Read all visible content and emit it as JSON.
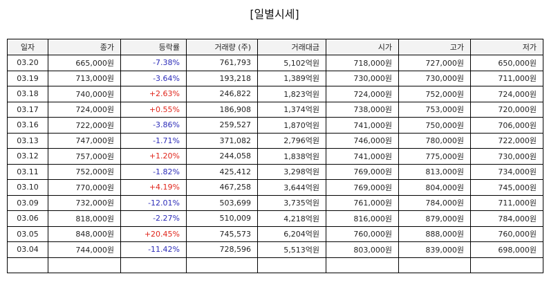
{
  "title": "[일별시세]",
  "colors": {
    "up": "#e0251b",
    "down": "#2b2bb8"
  },
  "columns": [
    "일자",
    "종가",
    "등락률",
    "거래량 (주)",
    "거래대금",
    "시가",
    "고가",
    "저가"
  ],
  "rows": [
    {
      "date": "03.20",
      "close": "665,000원",
      "change": "-7.38%",
      "dir": "down",
      "volume": "761,793",
      "amount": "5,102억원",
      "open": "718,000원",
      "high": "727,000원",
      "low": "650,000원"
    },
    {
      "date": "03.19",
      "close": "713,000원",
      "change": "-3.64%",
      "dir": "down",
      "volume": "193,218",
      "amount": "1,389억원",
      "open": "730,000원",
      "high": "730,000원",
      "low": "711,000원"
    },
    {
      "date": "03.18",
      "close": "740,000원",
      "change": "+2.63%",
      "dir": "up",
      "volume": "246,822",
      "amount": "1,823억원",
      "open": "724,000원",
      "high": "752,000원",
      "low": "724,000원"
    },
    {
      "date": "03.17",
      "close": "724,000원",
      "change": "+0.55%",
      "dir": "up",
      "volume": "186,908",
      "amount": "1,374억원",
      "open": "738,000원",
      "high": "753,000원",
      "low": "720,000원"
    },
    {
      "date": "03.16",
      "close": "722,000원",
      "change": "-3.86%",
      "dir": "down",
      "volume": "259,527",
      "amount": "1,870억원",
      "open": "741,000원",
      "high": "750,000원",
      "low": "706,000원"
    },
    {
      "date": "03.13",
      "close": "747,000원",
      "change": "-1.71%",
      "dir": "down",
      "volume": "371,082",
      "amount": "2,796억원",
      "open": "746,000원",
      "high": "780,000원",
      "low": "722,000원"
    },
    {
      "date": "03.12",
      "close": "757,000원",
      "change": "+1.20%",
      "dir": "up",
      "volume": "244,058",
      "amount": "1,838억원",
      "open": "741,000원",
      "high": "775,000원",
      "low": "730,000원"
    },
    {
      "date": "03.11",
      "close": "752,000원",
      "change": "-1.82%",
      "dir": "down",
      "volume": "425,412",
      "amount": "3,298억원",
      "open": "769,000원",
      "high": "813,000원",
      "low": "734,000원"
    },
    {
      "date": "03.10",
      "close": "770,000원",
      "change": "+4.19%",
      "dir": "up",
      "volume": "467,258",
      "amount": "3,644억원",
      "open": "769,000원",
      "high": "804,000원",
      "low": "745,000원"
    },
    {
      "date": "03.09",
      "close": "732,000원",
      "change": "-12.01%",
      "dir": "down",
      "volume": "503,699",
      "amount": "3,735억원",
      "open": "761,000원",
      "high": "784,000원",
      "low": "711,000원"
    },
    {
      "date": "03.06",
      "close": "818,000원",
      "change": "-2.27%",
      "dir": "down",
      "volume": "510,009",
      "amount": "4,218억원",
      "open": "816,000원",
      "high": "879,000원",
      "low": "784,000원"
    },
    {
      "date": "03.05",
      "close": "848,000원",
      "change": "+20.45%",
      "dir": "up",
      "volume": "745,573",
      "amount": "6,204억원",
      "open": "760,000원",
      "high": "888,000원",
      "low": "760,000원"
    },
    {
      "date": "03.04",
      "close": "744,000원",
      "change": "-11.42%",
      "dir": "down",
      "volume": "728,596",
      "amount": "5,513억원",
      "open": "803,000원",
      "high": "839,000원",
      "low": "698,000원"
    }
  ]
}
